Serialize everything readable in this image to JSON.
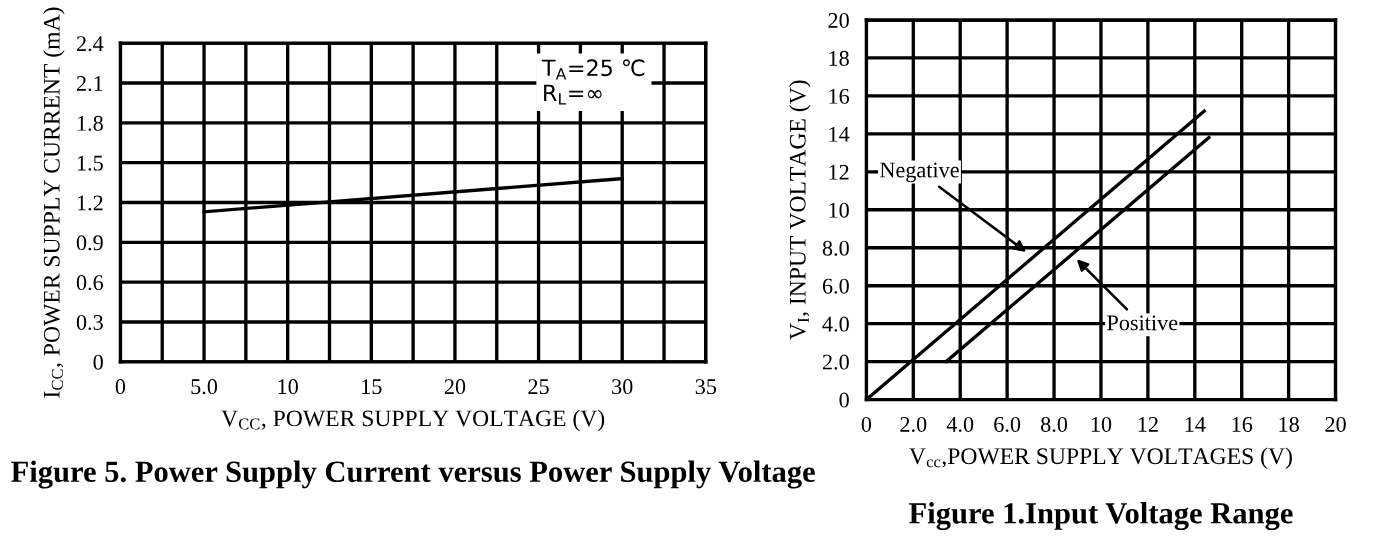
{
  "chart_data": [
    {
      "type": "line",
      "title": "Figure 5. Power Supply Current versus Power Supply Voltage",
      "xlabel": "V$_{CC}$, POWER SUPPLY VOLTAGE (V)",
      "ylabel": "I$_{CC}$, POWER SUPPLY CURRENT (mA)",
      "series": [
        {
          "x": [
            5,
            30
          ],
          "values": [
            1.13,
            1.38
          ],
          "color": "#000000"
        }
      ],
      "xlim": [
        0,
        35
      ],
      "xticks": [
        0,
        {
          "value": 2.5,
          "label": null
        },
        {
          "value": 5,
          "label": "5.0"
        },
        {
          "value": 7.5,
          "label": null
        },
        10,
        {
          "value": 12.5,
          "label": null
        },
        15,
        {
          "value": 17.5,
          "label": null
        },
        20,
        {
          "value": 22.5,
          "label": null
        },
        25,
        {
          "value": 27.5,
          "label": null
        },
        30,
        {
          "value": 32.5,
          "label": null
        },
        35
      ],
      "ylim": [
        0,
        2.4
      ],
      "yticks": [
        0,
        0.3,
        0.6,
        0.9,
        1.2,
        1.5,
        1.8,
        2.1,
        2.4
      ],
      "grid": true,
      "legend": false,
      "marker": "none",
      "line_style": "solid",
      "annotations": [
        "T$_{A}$=25 ℃\nR$_{L}$=∞"
      ]
    },
    {
      "type": "line",
      "title": "Figure 1.Input Voltage Range",
      "xlabel": "V$_{cc}$,POWER SUPPLY VOLTAGES (V)",
      "ylabel": "V$_{I}$, INPUT VOLTAGE (V)",
      "series": [
        {
          "x": [
            0,
            14.4
          ],
          "values": [
            0,
            15.2
          ],
          "color": "#000000"
        },
        {
          "x": [
            3.4,
            14.6
          ],
          "values": [
            2,
            13.8
          ],
          "color": "#000000"
        }
      ],
      "xlim": [
        0,
        20
      ],
      "xticks": [
        0,
        {
          "value": 2,
          "label": "2.0"
        },
        {
          "value": 4,
          "label": "4.0"
        },
        {
          "value": 6,
          "label": "6.0"
        },
        {
          "value": 8,
          "label": "8.0"
        },
        10,
        12,
        14,
        16,
        18,
        20
      ],
      "ylim": [
        0,
        20
      ],
      "yticks": [
        0,
        {
          "value": 2,
          "label": "2.0"
        },
        {
          "value": 4,
          "label": "4.0"
        },
        {
          "value": 6,
          "label": "6.0"
        },
        {
          "value": 8,
          "label": "8.0"
        },
        10,
        12,
        14,
        16,
        18,
        20
      ],
      "grid": true,
      "legend": false,
      "marker": "none",
      "line_style": "solid",
      "annotations": [
        {
          "text": "Negative",
          "x": 7.0,
          "y": 7.6
        },
        {
          "text": "Positive",
          "x": 8.8,
          "y": 7.6
        }
      ]
    }
  ]
}
